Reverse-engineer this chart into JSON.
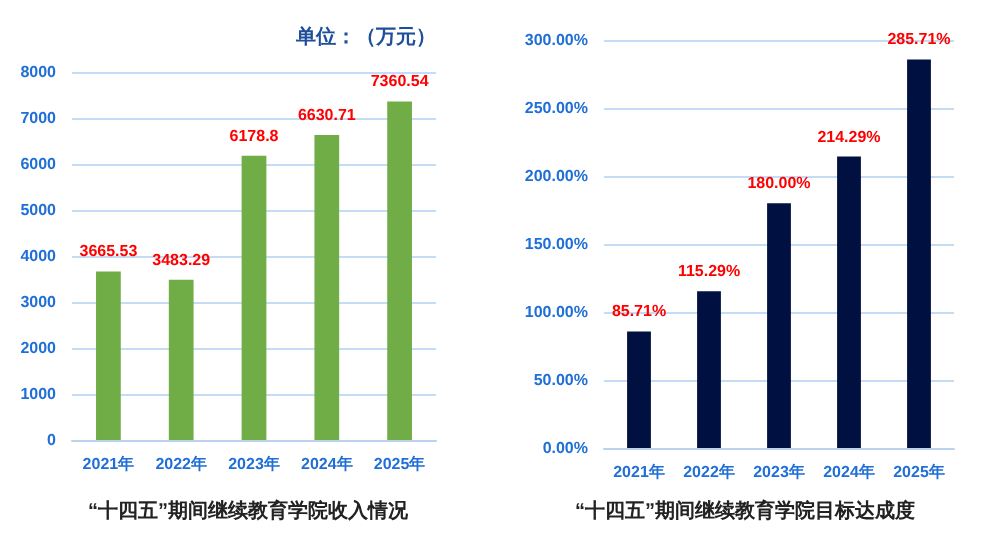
{
  "chart_data": [
    {
      "type": "bar",
      "title": "“十四五”期间继续教育学院收入情况",
      "annotations": [
        "单位：（万元）"
      ],
      "categories": [
        "2021年",
        "2022年",
        "2023年",
        "2024年",
        "2025年"
      ],
      "series": [
        {
          "color": "#70ad47",
          "values": [
            3665.53,
            3483.29,
            6178.8,
            6630.71,
            7360.54
          ],
          "value_labels": [
            "3665.53",
            "3483.29",
            "6178.8",
            "6630.71",
            "7360.54"
          ]
        }
      ],
      "ylim": [
        0,
        8000
      ],
      "yticks": [
        0,
        1000,
        2000,
        3000,
        4000,
        5000,
        6000,
        7000,
        8000
      ],
      "grid": "y"
    },
    {
      "type": "bar",
      "title": "“十四五”期间继续教育学院目标达成度",
      "categories": [
        "2021年",
        "2022年",
        "2023年",
        "2024年",
        "2025年"
      ],
      "series": [
        {
          "color": "#001040",
          "values": [
            85.71,
            115.29,
            180,
            214.29,
            285.71
          ],
          "value_labels": [
            "85.71%",
            "115.29%",
            "180.00%",
            "214.29%",
            "285.71%"
          ]
        }
      ],
      "ylim": [
        0,
        300
      ],
      "yticks": [
        {
          "value": 0,
          "label": "0.00%"
        },
        {
          "value": 50,
          "label": "50.00%"
        },
        {
          "value": 100,
          "label": "100.00%"
        },
        {
          "value": 150,
          "label": "150.00%"
        },
        {
          "value": 200,
          "label": "200.00%"
        },
        {
          "value": 250,
          "label": "250.00%"
        },
        {
          "value": 300,
          "label": "300.00%"
        }
      ],
      "grid": "y"
    }
  ]
}
